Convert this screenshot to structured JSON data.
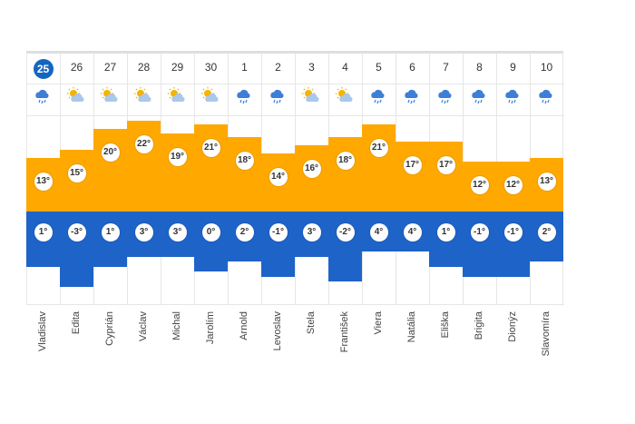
{
  "colors": {
    "high": "#ffa800",
    "low": "#1e63c8",
    "today": "#1565c0"
  },
  "days": [
    {
      "date": "25",
      "today": true,
      "icon": "rain-icon",
      "high": "13°",
      "low": "1°",
      "name": "Vladislav"
    },
    {
      "date": "26",
      "today": false,
      "icon": "sun-cloud-icon",
      "high": "15°",
      "low": "-3°",
      "name": "Edita"
    },
    {
      "date": "27",
      "today": false,
      "icon": "sun-cloud-icon",
      "high": "20°",
      "low": "1°",
      "name": "Cyprián"
    },
    {
      "date": "28",
      "today": false,
      "icon": "sun-cloud-icon",
      "high": "22°",
      "low": "3°",
      "name": "Václav"
    },
    {
      "date": "29",
      "today": false,
      "icon": "sun-cloud-icon",
      "high": "19°",
      "low": "3°",
      "name": "Michal"
    },
    {
      "date": "30",
      "today": false,
      "icon": "sun-cloud-icon",
      "high": "21°",
      "low": "0°",
      "name": "Jarolím"
    },
    {
      "date": "1",
      "today": false,
      "icon": "rain-icon",
      "high": "18°",
      "low": "2°",
      "name": "Arnold"
    },
    {
      "date": "2",
      "today": false,
      "icon": "rain-icon",
      "high": "14°",
      "low": "-1°",
      "name": "Levoslav"
    },
    {
      "date": "3",
      "today": false,
      "icon": "sun-cloud-icon",
      "high": "16°",
      "low": "3°",
      "name": "Stela"
    },
    {
      "date": "4",
      "today": false,
      "icon": "sun-cloud-icon",
      "high": "18°",
      "low": "-2°",
      "name": "František"
    },
    {
      "date": "5",
      "today": false,
      "icon": "rain-icon",
      "high": "21°",
      "low": "4°",
      "name": "Viera"
    },
    {
      "date": "6",
      "today": false,
      "icon": "rain-icon",
      "high": "17°",
      "low": "4°",
      "name": "Natália"
    },
    {
      "date": "7",
      "today": false,
      "icon": "rain-icon",
      "high": "17°",
      "low": "1°",
      "name": "Eliška"
    },
    {
      "date": "8",
      "today": false,
      "icon": "rain-icon",
      "high": "12°",
      "low": "-1°",
      "name": "Brigita"
    },
    {
      "date": "9",
      "today": false,
      "icon": "rain-icon",
      "high": "12°",
      "low": "-1°",
      "name": "Dionýz"
    },
    {
      "date": "10",
      "today": false,
      "icon": "rain-icon",
      "high": "13°",
      "low": "2°",
      "name": "Slavomíra"
    }
  ]
}
